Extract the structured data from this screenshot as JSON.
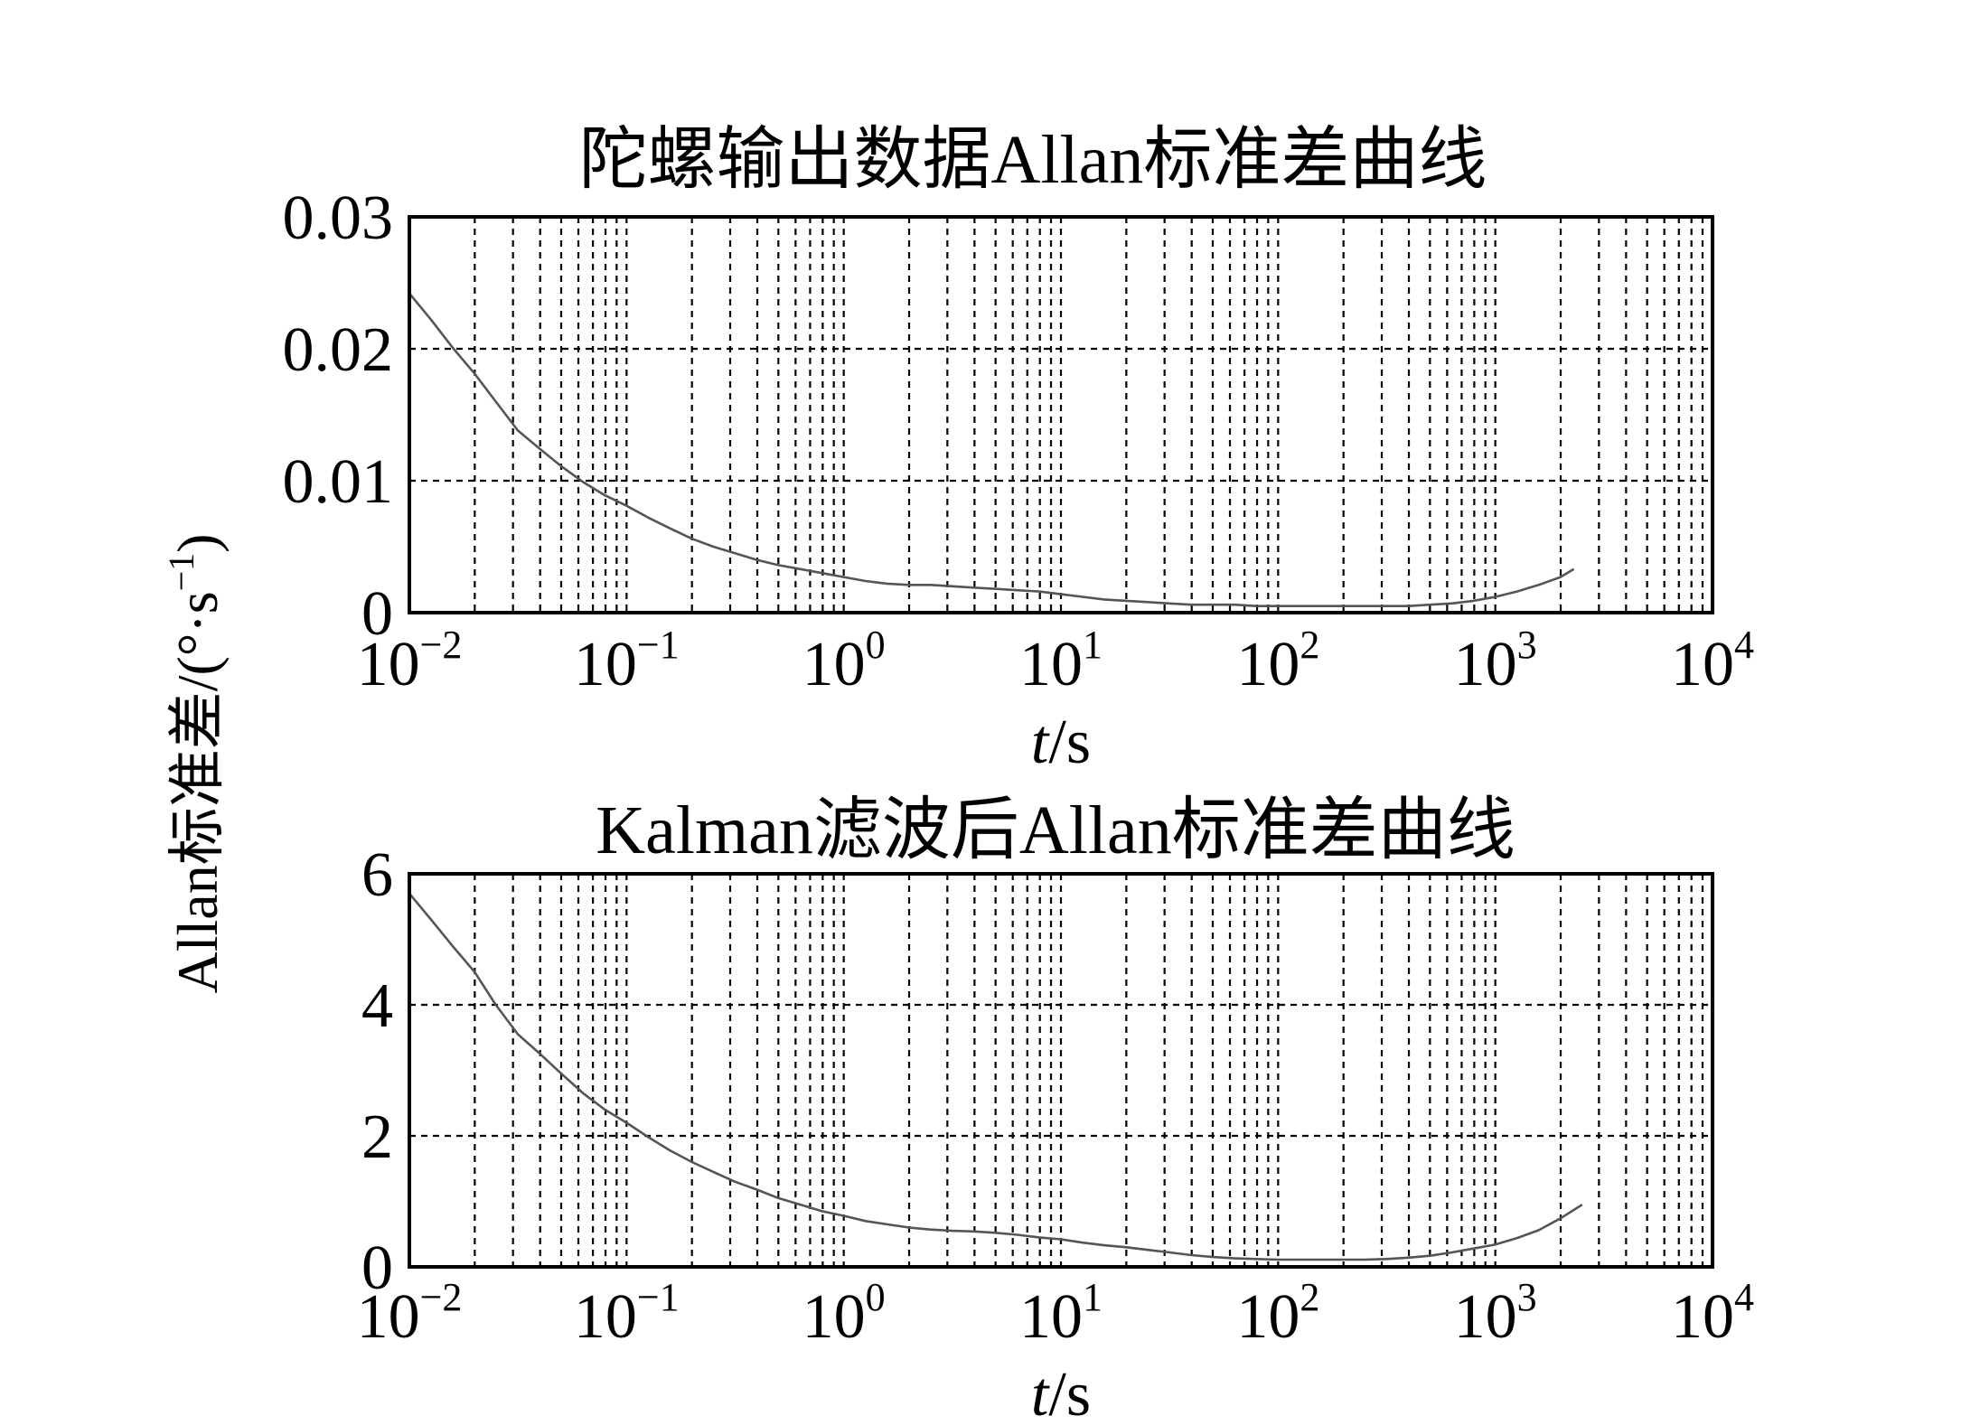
{
  "figure": {
    "shared_ylabel": "Allan标准差/(°·s⁻¹)",
    "ylabel_parts": {
      "main": "Allan标准差/(°·s",
      "sup": "−1",
      "close": ")"
    }
  },
  "chart_data": [
    {
      "type": "line",
      "title": "陀螺输出数据Allan标准差曲线",
      "xlabel": {
        "italic": "t",
        "rest": "/s"
      },
      "xscale": "log",
      "xlim": [
        0.01,
        10000
      ],
      "ylim": [
        0,
        0.03
      ],
      "grid": true,
      "xticks": [
        {
          "value": 0.01,
          "base": "10",
          "exp": "−2"
        },
        {
          "value": 0.1,
          "base": "10",
          "exp": "−1"
        },
        {
          "value": 1,
          "base": "10",
          "exp": "0"
        },
        {
          "value": 10,
          "base": "10",
          "exp": "1"
        },
        {
          "value": 100,
          "base": "10",
          "exp": "2"
        },
        {
          "value": 1000,
          "base": "10",
          "exp": "3"
        },
        {
          "value": 10000,
          "base": "10",
          "exp": "4"
        }
      ],
      "yticks": [
        {
          "value": 0,
          "label": "0"
        },
        {
          "value": 0.01,
          "label": "0.01"
        },
        {
          "value": 0.02,
          "label": "0.02"
        },
        {
          "value": 0.03,
          "label": "0.03"
        }
      ],
      "series": [
        {
          "color": "#555555",
          "x": [
            0.01,
            0.0126,
            0.0158,
            0.02,
            0.025,
            0.0316,
            0.04,
            0.05,
            0.0631,
            0.0794,
            0.1,
            0.126,
            0.158,
            0.2,
            0.251,
            0.316,
            0.398,
            0.5,
            0.631,
            0.794,
            1,
            1.26,
            1.58,
            2,
            2.51,
            3.16,
            3.98,
            5.01,
            6.31,
            7.94,
            10,
            12.6,
            15.8,
            20,
            25.1,
            31.6,
            39.8,
            50.1,
            63.1,
            79.4,
            100,
            126,
            158,
            200,
            251,
            316,
            398,
            501,
            631,
            794,
            1000,
            1259,
            1585,
            1995,
            2300
          ],
          "y": [
            0.0242,
            0.0222,
            0.0201,
            0.0181,
            0.016,
            0.0138,
            0.0124,
            0.0111,
            0.0099,
            0.0089,
            0.0081,
            0.0072,
            0.0064,
            0.0056,
            0.005,
            0.0045,
            0.004,
            0.0036,
            0.0033,
            0.003,
            0.0027,
            0.0024,
            0.0022,
            0.0021,
            0.0021,
            0.002,
            0.0019,
            0.0018,
            0.0017,
            0.0016,
            0.0014,
            0.0012,
            0.001,
            0.0009,
            0.0008,
            0.0007,
            0.0006,
            0.0006,
            0.0006,
            0.0005,
            0.0005,
            0.0005,
            0.0005,
            0.0005,
            0.0005,
            0.0005,
            0.0005,
            0.0006,
            0.0007,
            0.0009,
            0.0012,
            0.0016,
            0.0021,
            0.0027,
            0.0033
          ]
        }
      ]
    },
    {
      "type": "line",
      "title": "Kalman滤波后Allan标准差曲线",
      "xlabel": {
        "italic": "t",
        "rest": "/s"
      },
      "xscale": "log",
      "xlim": [
        0.01,
        10000
      ],
      "ylim": [
        0,
        6
      ],
      "grid": true,
      "xticks": [
        {
          "value": 0.01,
          "base": "10",
          "exp": "−2"
        },
        {
          "value": 0.1,
          "base": "10",
          "exp": "−1"
        },
        {
          "value": 1,
          "base": "10",
          "exp": "0"
        },
        {
          "value": 10,
          "base": "10",
          "exp": "1"
        },
        {
          "value": 100,
          "base": "10",
          "exp": "2"
        },
        {
          "value": 1000,
          "base": "10",
          "exp": "3"
        },
        {
          "value": 10000,
          "base": "10",
          "exp": "4"
        }
      ],
      "yticks": [
        {
          "value": 0,
          "label": "0"
        },
        {
          "value": 2,
          "label": "2"
        },
        {
          "value": 4,
          "label": "4"
        },
        {
          "value": 6,
          "label": "6"
        }
      ],
      "series": [
        {
          "color": "#555555",
          "x": [
            0.01,
            0.0126,
            0.0158,
            0.02,
            0.025,
            0.0316,
            0.04,
            0.05,
            0.0631,
            0.0794,
            0.1,
            0.126,
            0.158,
            0.2,
            0.251,
            0.316,
            0.398,
            0.5,
            0.631,
            0.794,
            1,
            1.26,
            1.58,
            2,
            2.51,
            3.16,
            3.98,
            5.01,
            6.31,
            7.94,
            10,
            12.6,
            15.8,
            20,
            25.1,
            31.6,
            39.8,
            50.1,
            63.1,
            79.4,
            100,
            126,
            158,
            200,
            251,
            316,
            398,
            501,
            631,
            794,
            1000,
            1259,
            1585,
            1995,
            2512
          ],
          "y": [
            5.7,
            5.3,
            4.9,
            4.5,
            4.0,
            3.55,
            3.25,
            2.95,
            2.65,
            2.4,
            2.2,
            1.98,
            1.78,
            1.6,
            1.45,
            1.3,
            1.18,
            1.05,
            0.95,
            0.85,
            0.78,
            0.7,
            0.65,
            0.6,
            0.57,
            0.55,
            0.54,
            0.52,
            0.49,
            0.45,
            0.42,
            0.37,
            0.33,
            0.3,
            0.26,
            0.22,
            0.18,
            0.15,
            0.13,
            0.12,
            0.11,
            0.11,
            0.11,
            0.11,
            0.11,
            0.12,
            0.14,
            0.17,
            0.22,
            0.28,
            0.34,
            0.44,
            0.56,
            0.74,
            0.95
          ]
        }
      ]
    }
  ]
}
